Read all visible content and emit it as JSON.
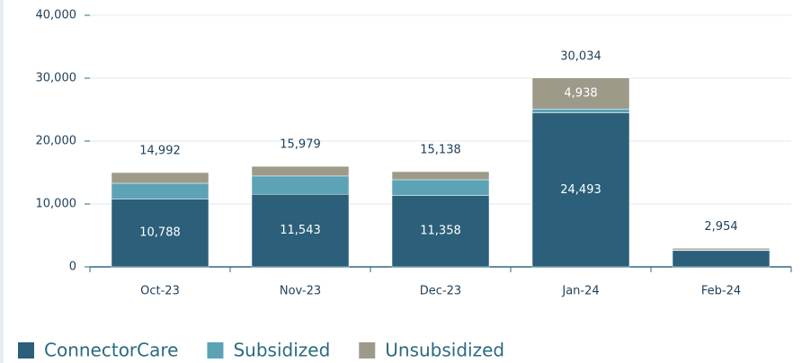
{
  "chart_data": {
    "type": "stacked_bar",
    "categories": [
      "Oct-23",
      "Nov-23",
      "Dec-23",
      "Jan-24",
      "Feb-24"
    ],
    "series": [
      {
        "name": "ConnectorCare",
        "color": "#2b5f7a",
        "values": [
          10788,
          11543,
          11358,
          24493,
          2600
        ],
        "value_labels": [
          "10,788",
          "11,543",
          "11,358",
          "24,493",
          null
        ]
      },
      {
        "name": "Subsidized",
        "color": "#5ba3b5",
        "values": [
          2500,
          2900,
          2500,
          603,
          100
        ]
      },
      {
        "name": "Unsubsidized",
        "color": "#9e9a8a",
        "values": [
          1704,
          1536,
          1280,
          4938,
          254
        ],
        "value_labels": [
          null,
          null,
          null,
          "4,938",
          null
        ]
      }
    ],
    "totals": [
      14992,
      15979,
      15138,
      30034,
      2954
    ],
    "total_labels": [
      "14,992",
      "15,979",
      "15,138",
      "30,034",
      "2,954"
    ],
    "ylim": [
      0,
      40000
    ],
    "yticks": [
      0,
      {
        "value": 10000,
        "label": "10,000"
      },
      {
        "value": 20000,
        "label": "20,000"
      },
      {
        "value": 30000,
        "label": "30,000"
      },
      {
        "value": 40000,
        "label": "40,000"
      }
    ],
    "grid": true,
    "legend": "bottom-left"
  }
}
